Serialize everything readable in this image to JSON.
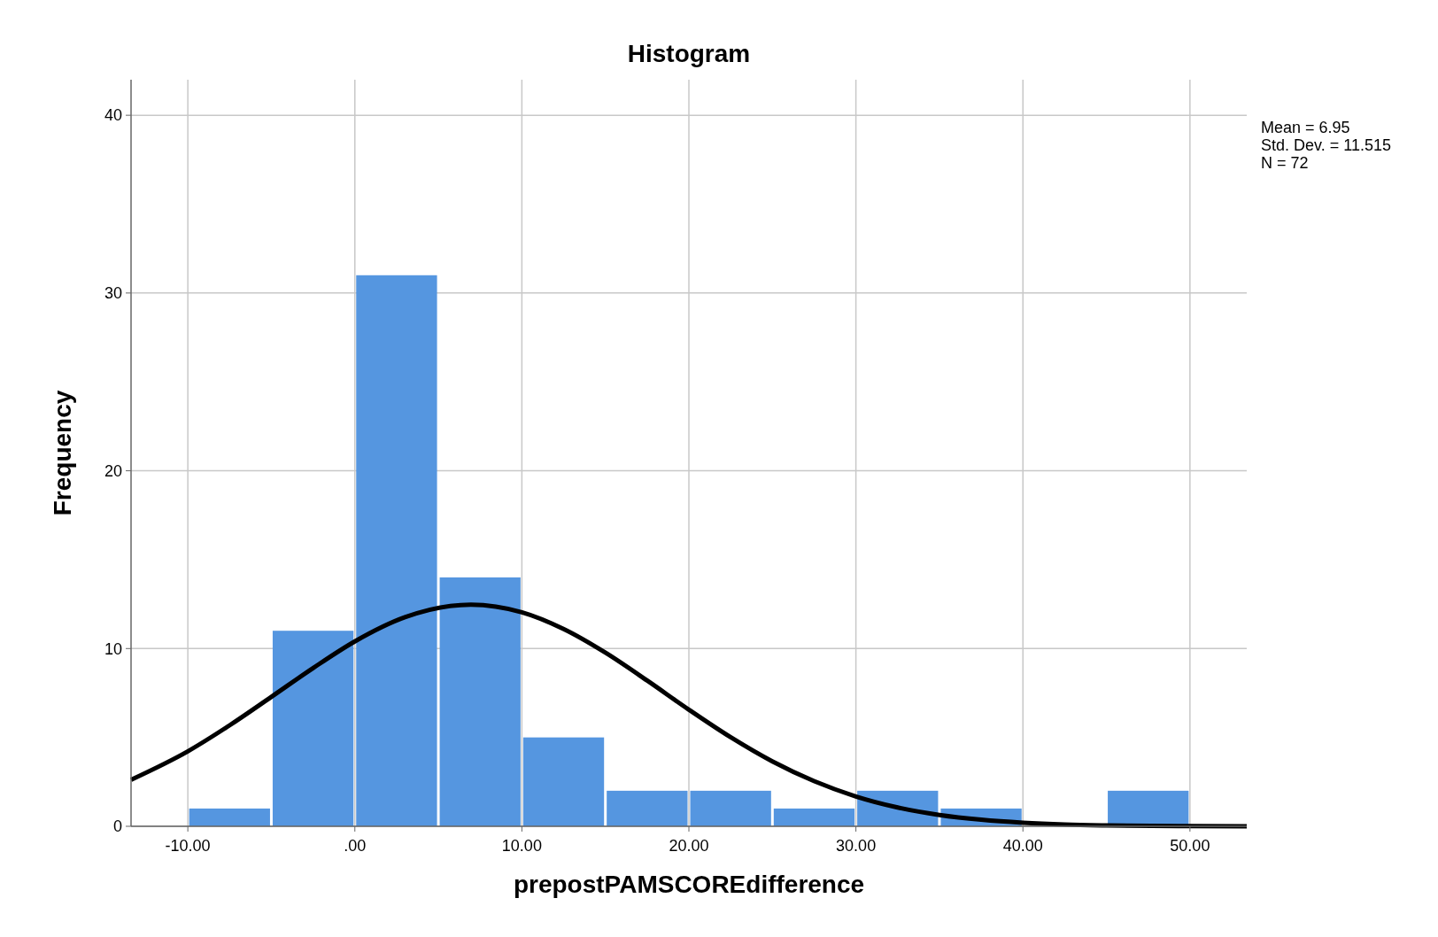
{
  "chart_data": {
    "type": "histogram",
    "title": "Histogram",
    "xlabel": "prepostPAMSCOREdifference",
    "ylabel": "Frequency",
    "bins": [
      -10,
      -5,
      0,
      5,
      10,
      15,
      20,
      25,
      30,
      35,
      40,
      45,
      50
    ],
    "values": [
      1,
      11,
      31,
      14,
      5,
      2,
      2,
      1,
      2,
      1,
      0,
      2
    ],
    "color": "#5596e0",
    "series": [
      {
        "type": "line",
        "color": "#000000",
        "x": [
          -13.4,
          -10,
          -7.5,
          -5,
          -2.5,
          0,
          3,
          6.95,
          10,
          12.5,
          15,
          17.5,
          20,
          22.5,
          25,
          27.5,
          30,
          32.5,
          35,
          37.5,
          40,
          42.5,
          45,
          50,
          53.4
        ],
        "values": [
          2.62,
          4.22,
          5.68,
          7.28,
          8.9,
          10.4,
          11.76,
          12.47,
          12.04,
          11.1,
          9.77,
          8.2,
          6.56,
          5.01,
          3.65,
          2.54,
          1.68,
          1.06,
          0.64,
          0.37,
          0.2,
          0.1,
          0.05,
          0.01,
          0
        ]
      }
    ],
    "xlim": [
      -13.4,
      53.4
    ],
    "ylim": [
      0,
      42
    ],
    "xticks": [
      {
        "value": -10,
        "label": "-10.00"
      },
      {
        "value": 0,
        "label": ".00"
      },
      {
        "value": 10,
        "label": "10.00"
      },
      {
        "value": 20,
        "label": "20.00"
      },
      {
        "value": 30,
        "label": "30.00"
      },
      {
        "value": 40,
        "label": "40.00"
      },
      {
        "value": 50,
        "label": "50.00"
      }
    ],
    "yticks": [
      0,
      10,
      20,
      30,
      40
    ],
    "grid": true,
    "annotations": [
      "Mean = 6.95",
      "Std. Dev. = 11.515",
      "N = 72"
    ]
  }
}
